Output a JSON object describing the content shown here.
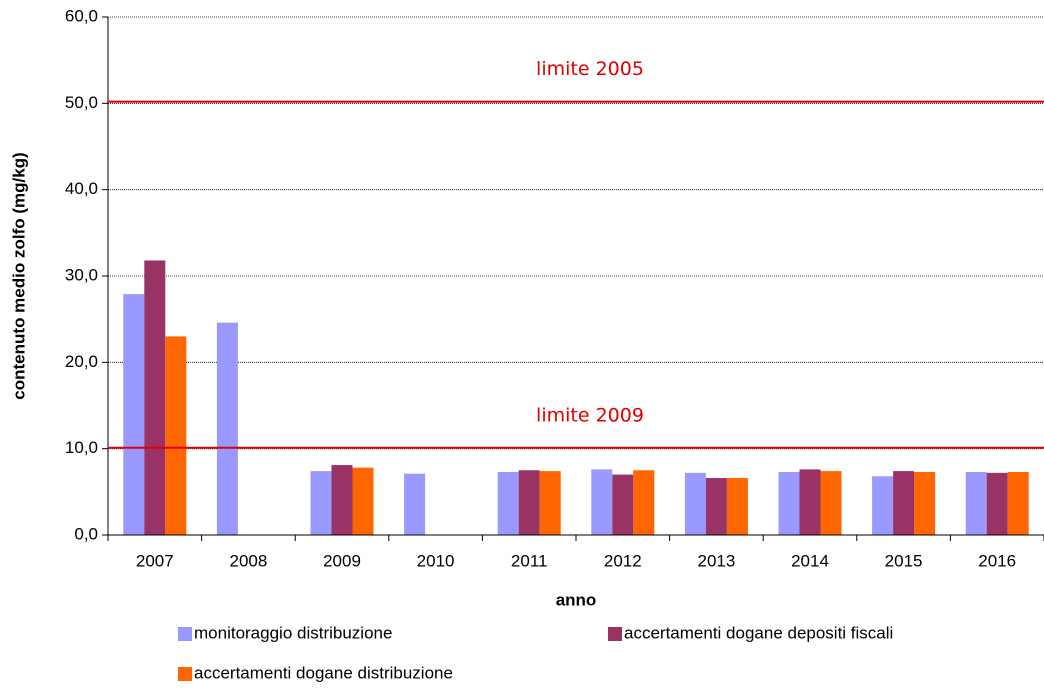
{
  "chart_data": {
    "type": "bar",
    "y_label": "contenuto medio zolfo (mg/kg)",
    "x_label": "anno",
    "categories": [
      "2007",
      "2008",
      "2009",
      "2010",
      "2011",
      "2012",
      "2013",
      "2014",
      "2015",
      "2016"
    ],
    "series": [
      {
        "name": "monitoraggio distribuzione",
        "color": "#9999ff",
        "values": [
          27.9,
          24.6,
          7.4,
          7.1,
          7.3,
          7.6,
          7.2,
          7.3,
          6.8,
          7.3
        ]
      },
      {
        "name": "accertamenti dogane depositi fiscali",
        "color": "#993366",
        "values": [
          31.8,
          null,
          8.1,
          null,
          7.5,
          7.0,
          6.6,
          7.6,
          7.4,
          7.2
        ]
      },
      {
        "name": "accertamenti dogane distribuzione",
        "color": "#ff6600",
        "values": [
          23.0,
          null,
          7.8,
          null,
          7.4,
          7.5,
          6.6,
          7.4,
          7.3,
          7.3
        ]
      }
    ],
    "reference_lines": [
      {
        "value": 50.2,
        "label": "limite 2005",
        "color": "#e00000"
      },
      {
        "value": 10.1,
        "label": "limite 2009",
        "color": "#e00000"
      }
    ],
    "ylim": [
      0,
      60
    ],
    "yticks": [
      {
        "value": 0,
        "label": "0,0"
      },
      {
        "value": 10,
        "label": "10,0"
      },
      {
        "value": 20,
        "label": "20,0"
      },
      {
        "value": 30,
        "label": "30,0"
      },
      {
        "value": 40,
        "label": "40,0"
      },
      {
        "value": 50,
        "label": "50,0"
      },
      {
        "value": 60,
        "label": "60,0"
      }
    ],
    "grid": true
  }
}
